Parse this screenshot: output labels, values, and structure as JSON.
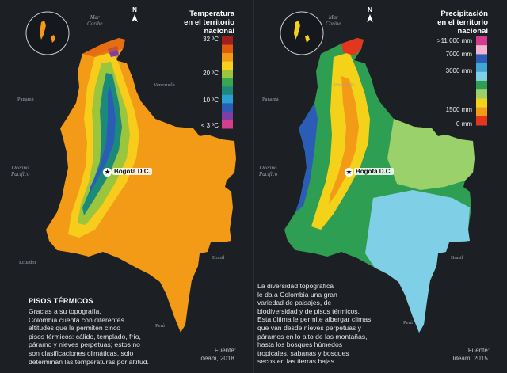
{
  "left": {
    "legend_title": [
      "Temperatura",
      "en el territorio",
      "nacional"
    ],
    "ticks": [
      "32 ºC",
      "20 ºC",
      "10 ºC",
      "< 3 ºC"
    ],
    "heading": "PISOS TÉRMICOS",
    "body": [
      "Gracias a su topografía,",
      "Colombia cuenta con diferentes",
      "altitudes que le permiten cinco",
      "pisos térmicos: cálido, templado, frío,",
      "páramo y nieves perpetuas; estos no",
      "son clasificaciones climáticas, solo",
      "determinan las temperaturas por altitud."
    ],
    "source": [
      "Fuente:",
      "Ideam, 2018."
    ],
    "colors": [
      "#a01e1e",
      "#e05a10",
      "#f39a16",
      "#f7d11b",
      "#9bc53d",
      "#3aa655",
      "#1b8a7a",
      "#2a9fd0",
      "#2b5db6",
      "#7b3fa6",
      "#d43f8d"
    ]
  },
  "right": {
    "legend_title": [
      "Precipitación",
      "en el territorio",
      "nacional"
    ],
    "ticks": [
      ">11 000 mm",
      "7000 mm",
      "3000 mm",
      "1500 mm",
      "0 mm"
    ],
    "body": [
      "La diversidad topográfica",
      "le da a Colombia una gran",
      "variedad de paisajes, de",
      "biodiversidad y de pisos térmicos.",
      "Esta última le permite albergar climas",
      "que van desde nieves perpetuas y",
      "páramos en lo alto de las montañas,",
      "hasta los bosques húmedos",
      "tropicales, sabanas y bosques",
      "secos en las tierras bajas."
    ],
    "source": [
      "Fuente:",
      "Ideam, 2015."
    ],
    "colors": [
      "#d23c8c",
      "#f2b6d4",
      "#2b5db6",
      "#3fa6d6",
      "#7fd0e6",
      "#2e9e52",
      "#9bd16a",
      "#f4d21a",
      "#f39a16",
      "#e3361f"
    ]
  },
  "labels": {
    "sea_caribe": [
      "Mar",
      "Caribe"
    ],
    "venezuela": "Venezuela",
    "panama": "Panamá",
    "pacifico": [
      "Océano",
      "Pacífico"
    ],
    "ecuador": "Ecuador",
    "brasil": "Brasil",
    "peru": "Perú",
    "capital": "Bogotá D.C.",
    "north": "N"
  }
}
